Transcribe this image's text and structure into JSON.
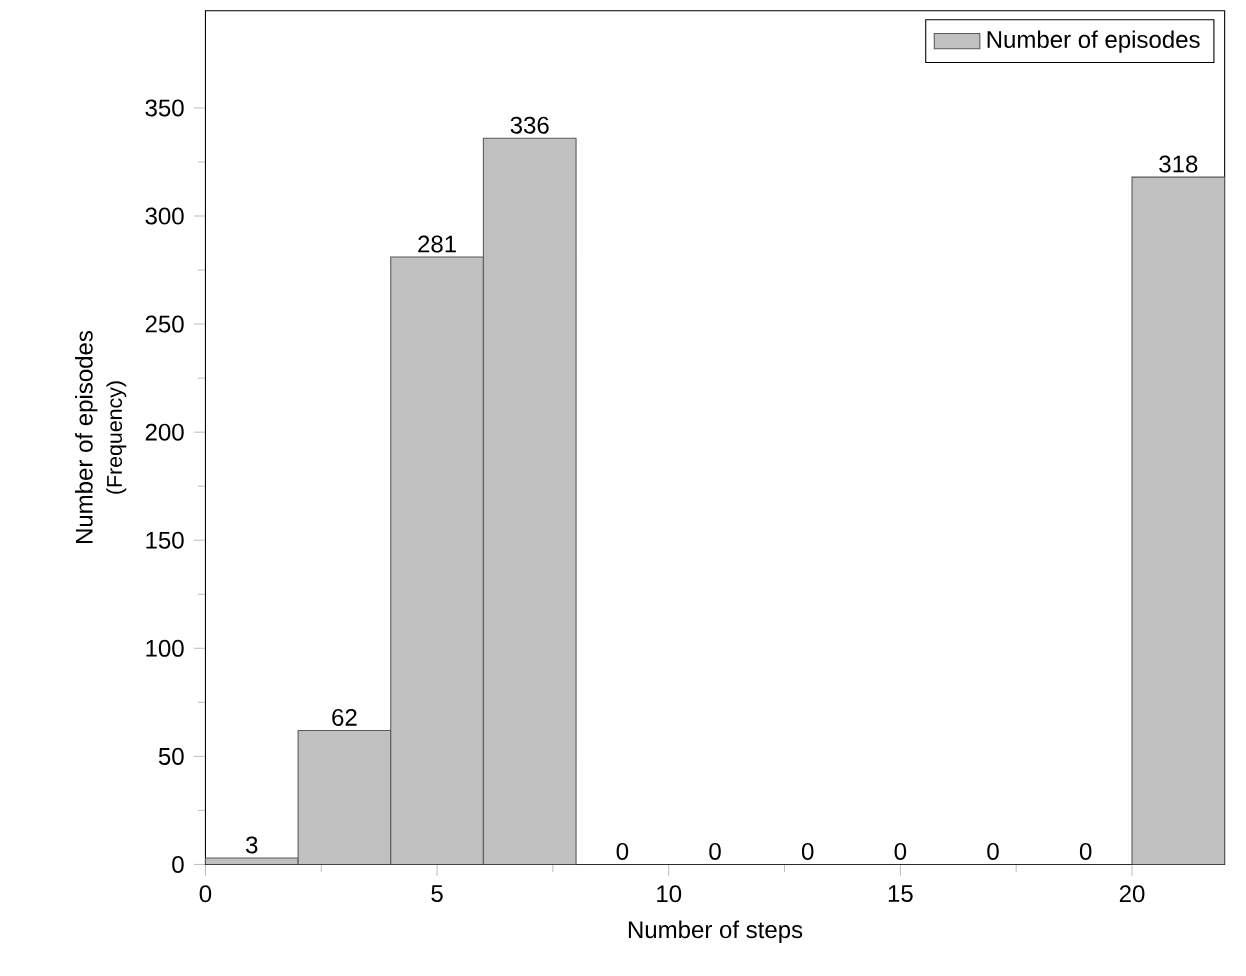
{
  "chart_data": {
    "type": "histogram",
    "xlabel": "Number of steps",
    "ylabel": "Number of episodes",
    "annotations": [
      "(Frequency)"
    ],
    "bins": [
      0,
      2,
      4,
      6,
      8,
      10,
      12,
      14,
      16,
      18,
      20,
      22
    ],
    "series": [
      {
        "name": "Number of episodes",
        "color": "#c0c0c0",
        "values": [
          3,
          62,
          281,
          336,
          0,
          0,
          0,
          0,
          0,
          0,
          318
        ]
      }
    ],
    "xlim": [
      0,
      22
    ],
    "ylim": [
      0,
      395
    ],
    "xticks": [
      0,
      5,
      10,
      15,
      20
    ],
    "yticks": [
      0,
      50,
      100,
      150,
      200,
      250,
      300,
      350
    ],
    "data_labels": true,
    "legend": "top right",
    "grid": false
  }
}
